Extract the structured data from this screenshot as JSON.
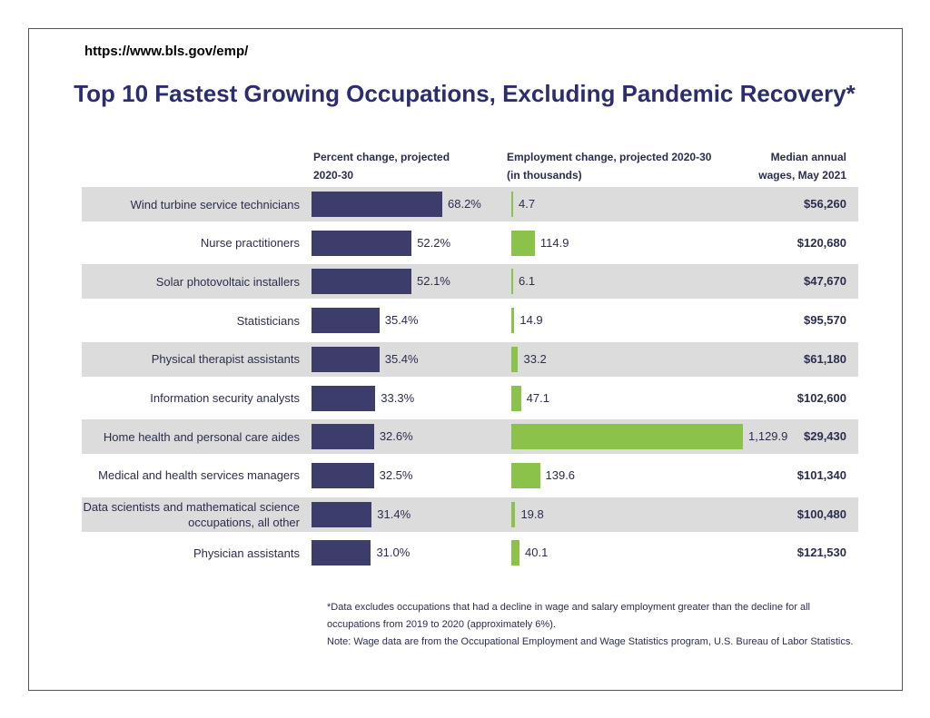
{
  "chart_data": {
    "type": "bar",
    "source_url": "https://www.bls.gov/emp/",
    "title": "Top 10 Fastest Growing Occupations, Excluding Pandemic Recovery*",
    "categories": [
      "Wind turbine service technicians",
      "Nurse practitioners",
      "Solar photovoltaic installers",
      "Statisticians",
      "Physical therapist assistants",
      "Information security analysts",
      "Home health and personal care aides",
      "Medical and health services managers",
      "Data scientists and mathematical science occupations, all other",
      "Physician assistants"
    ],
    "series": [
      {
        "name": "Percent change, projected 2020-30",
        "color": "#3d3d6b",
        "values": [
          68.2,
          52.2,
          52.1,
          35.4,
          35.4,
          33.3,
          32.6,
          32.5,
          31.4,
          31.0
        ],
        "value_labels": [
          "68.2%",
          "52.2%",
          "52.1%",
          "35.4%",
          "35.4%",
          "33.3%",
          "32.6%",
          "32.5%",
          "31.4%",
          "31.0%"
        ]
      },
      {
        "name": "Employment change, projected 2020-30 (in thousands)",
        "color": "#8bc34a",
        "values": [
          4.7,
          114.9,
          6.1,
          14.9,
          33.2,
          47.1,
          1129.9,
          139.6,
          19.8,
          40.1
        ],
        "value_labels": [
          "4.7",
          "114.9",
          "6.1",
          "14.9",
          "33.2",
          "47.1",
          "1,129.9",
          "139.6",
          "19.8",
          "40.1"
        ]
      }
    ],
    "wages_header": "Median annual wages, May 2021",
    "wages": [
      "$56,260",
      "$120,680",
      "$47,670",
      "$95,570",
      "$61,180",
      "$102,600",
      "$29,430",
      "$101,340",
      "$100,480",
      "$121,530"
    ],
    "notes": [
      "*Data excludes occupations that had a decline in wage and salary employment greater than the decline for all occupations from 2019 to 2020 (approximately 6%).",
      "Note: Wage data are from the Occupational Employment and Wage Statistics program, U.S. Bureau of Labor Statistics."
    ]
  }
}
